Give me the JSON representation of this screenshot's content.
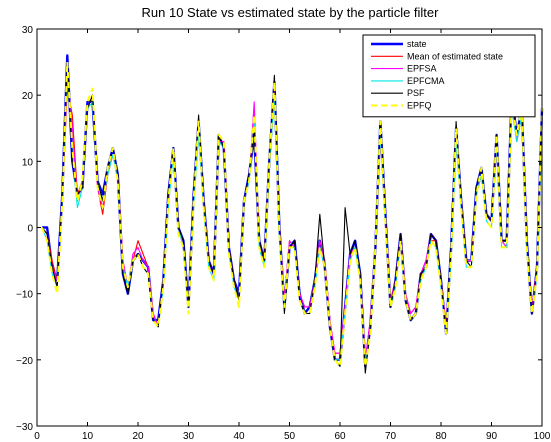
{
  "chart_data": {
    "type": "line",
    "title": "Run 10 State vs estimated state by the particle filter",
    "xlabel": "",
    "ylabel": "",
    "xlim": [
      0,
      100
    ],
    "ylim": [
      -30,
      30
    ],
    "grid": false,
    "legend_position": "top-right",
    "x_ticks": [
      0,
      10,
      20,
      30,
      40,
      50,
      60,
      70,
      80,
      90,
      100
    ],
    "y_ticks": [
      -30,
      -20,
      -10,
      0,
      10,
      20,
      30
    ],
    "x_tick_labels": [
      "0",
      "10",
      "20",
      "30",
      "40",
      "50",
      "60",
      "70",
      "80",
      "90",
      "100"
    ],
    "y_tick_labels": [
      "−30",
      "−20",
      "−10",
      "0",
      "10",
      "20",
      "30"
    ],
    "x": [
      1,
      2,
      3,
      4,
      5,
      6,
      7,
      8,
      9,
      10,
      11,
      12,
      13,
      14,
      15,
      16,
      17,
      18,
      19,
      20,
      21,
      22,
      23,
      24,
      25,
      26,
      27,
      28,
      29,
      30,
      31,
      32,
      33,
      34,
      35,
      36,
      37,
      38,
      39,
      40,
      41,
      42,
      43,
      44,
      45,
      46,
      47,
      48,
      49,
      50,
      51,
      52,
      53,
      54,
      55,
      56,
      57,
      58,
      59,
      60,
      61,
      62,
      63,
      64,
      65,
      66,
      67,
      68,
      69,
      70,
      71,
      72,
      73,
      74,
      75,
      76,
      77,
      78,
      79,
      80,
      81,
      82,
      83,
      84,
      85,
      86,
      87,
      88,
      89,
      90,
      91,
      92,
      93,
      94,
      95,
      96,
      97,
      98,
      99,
      100
    ],
    "series": [
      {
        "name": "state",
        "color": "#0000ff",
        "width": 2.4,
        "dash": "",
        "values": [
          0,
          0,
          -6,
          -8,
          5,
          26,
          10,
          5,
          6,
          19,
          19,
          7,
          5,
          9,
          12,
          8,
          -7,
          -10,
          -5,
          -4,
          -5,
          -6,
          -14,
          -14,
          -8,
          5,
          12,
          0,
          -2,
          -12,
          5,
          16,
          4,
          -5,
          -7,
          14,
          12,
          -3,
          -8,
          -10,
          4,
          8,
          14,
          -2,
          -5,
          10,
          22,
          0,
          -12,
          -3,
          -2,
          -10,
          -13,
          -12,
          -8,
          -2,
          -6,
          -15,
          -20,
          -20,
          -12,
          -4,
          -2,
          -7,
          -21,
          -15,
          -3,
          16,
          2,
          -12,
          -8,
          -1,
          -11,
          -14,
          -13,
          -7,
          -6,
          -1,
          -2,
          -8,
          -16,
          -3,
          15,
          4,
          -5,
          -5,
          6,
          9,
          2,
          1,
          14,
          -2,
          -2,
          20,
          14,
          18,
          -2,
          -13,
          -6,
          18
        ]
      },
      {
        "name": "Mean of estimated state",
        "color": "#ff0000",
        "width": 1.1,
        "dash": "",
        "values": [
          0,
          -1,
          -5,
          -8,
          4,
          21,
          17,
          5,
          7,
          18,
          20,
          6,
          2,
          8,
          11,
          8,
          -5,
          -9,
          -5,
          -2,
          -4,
          -6,
          -13,
          -15,
          -8,
          4,
          11,
          0,
          -3,
          -12,
          4,
          15,
          4,
          -5,
          -7,
          13,
          13,
          -3,
          -8,
          -11,
          4,
          7,
          18,
          -2,
          -5,
          9,
          21,
          0,
          -11,
          -2,
          -3,
          -10,
          -12,
          -12,
          -8,
          -2,
          -5,
          -14,
          -19,
          -19,
          -12,
          -4,
          -3,
          -7,
          -20,
          -14,
          -3,
          14,
          2,
          -11,
          -8,
          -1,
          -10,
          -13,
          -12,
          -7,
          -5,
          -2,
          -2,
          -8,
          -15,
          -4,
          14,
          4,
          -5,
          -5,
          5,
          8,
          2,
          1,
          13,
          -2,
          -3,
          19,
          13,
          17,
          -3,
          -12,
          -6,
          17
        ]
      },
      {
        "name": "EPFSA",
        "color": "#ff00ff",
        "width": 1.1,
        "dash": "",
        "values": [
          0,
          -1,
          -6,
          -8,
          4,
          23,
          15,
          4,
          7,
          18,
          20,
          6,
          3,
          8,
          11,
          8,
          -5,
          -9,
          -4,
          -3,
          -5,
          -6,
          -13,
          -15,
          -8,
          5,
          11,
          0,
          -3,
          -12,
          4,
          15,
          4,
          -5,
          -7,
          13,
          13,
          -3,
          -8,
          -11,
          4,
          7,
          19,
          -2,
          -5,
          9,
          21,
          0,
          -11,
          -2,
          -3,
          -10,
          -12,
          -12,
          -8,
          -2,
          -5,
          -14,
          -19,
          -19,
          -12,
          -4,
          -3,
          -7,
          -20,
          -14,
          -3,
          14,
          2,
          -11,
          -8,
          -1,
          -10,
          -13,
          -12,
          -7,
          -5,
          -1,
          -2,
          -8,
          -15,
          -4,
          14,
          4,
          -5,
          -5,
          5,
          8,
          2,
          1,
          14,
          -2,
          -3,
          19,
          13,
          17,
          -3,
          -12,
          -6,
          17
        ]
      },
      {
        "name": "EPFCMA",
        "color": "#00e5e5",
        "width": 1.1,
        "dash": "",
        "values": [
          0,
          -2,
          -7,
          -9,
          4,
          24,
          11,
          3,
          6,
          18,
          19,
          7,
          4,
          8,
          11,
          7,
          -6,
          -9,
          -5,
          -4,
          -6,
          -7,
          -14,
          -15,
          -9,
          3,
          11,
          0,
          -3,
          -12,
          3,
          14,
          3,
          -6,
          -8,
          13,
          12,
          -3,
          -9,
          -11,
          4,
          7,
          16,
          -3,
          -6,
          9,
          20,
          -1,
          -12,
          -3,
          -3,
          -11,
          -13,
          -13,
          -9,
          -3,
          -6,
          -15,
          -20,
          -20,
          -13,
          -5,
          -3,
          -8,
          -21,
          -15,
          -3,
          14,
          1,
          -12,
          -9,
          -2,
          -11,
          -14,
          -13,
          -8,
          -6,
          -2,
          -3,
          -9,
          -16,
          -5,
          13,
          3,
          -6,
          -6,
          5,
          8,
          1,
          0,
          13,
          -3,
          -3,
          18,
          13,
          17,
          -3,
          -13,
          -7,
          16
        ]
      },
      {
        "name": "PSF",
        "color": "#000000",
        "width": 1.1,
        "dash": "",
        "values": [
          0,
          -1,
          -6,
          -9,
          5,
          25,
          10,
          5,
          6,
          18,
          20,
          7,
          4,
          9,
          12,
          8,
          -7,
          -10,
          -5,
          -4,
          -6,
          -7,
          -14,
          -15,
          -8,
          5,
          12,
          0,
          -2,
          -12,
          5,
          17,
          4,
          -5,
          -7,
          14,
          12,
          -3,
          -8,
          -11,
          4,
          8,
          15,
          -2,
          -5,
          10,
          23,
          0,
          -13,
          -3,
          -2,
          -11,
          -13,
          -13,
          -8,
          2,
          -6,
          -15,
          -20,
          -21,
          3,
          -4,
          -2,
          -7,
          -22,
          -15,
          -3,
          16,
          2,
          -12,
          -8,
          -1,
          -11,
          -14,
          -13,
          -7,
          -6,
          -1,
          -2,
          -8,
          -16,
          -3,
          16,
          4,
          -5,
          -6,
          6,
          9,
          2,
          1,
          14,
          -2,
          -2,
          20,
          14,
          18,
          -2,
          -13,
          -6,
          18
        ]
      },
      {
        "name": "EPFQ",
        "color": "#ffff00",
        "width": 2.0,
        "dash": "6 4",
        "values": [
          0,
          -2,
          -7,
          -10,
          4,
          25,
          12,
          4,
          7,
          19,
          21,
          6,
          3,
          9,
          12,
          7,
          -6,
          -9,
          -5,
          -4,
          -6,
          -7,
          -14,
          -15,
          -9,
          4,
          12,
          -1,
          -3,
          -13,
          4,
          16,
          3,
          -6,
          -8,
          14,
          13,
          -4,
          -9,
          -12,
          4,
          7,
          17,
          -3,
          -6,
          10,
          22,
          -1,
          -12,
          -3,
          -3,
          -11,
          -13,
          -13,
          -9,
          -3,
          -6,
          -15,
          -20,
          -21,
          -13,
          -5,
          -3,
          -8,
          -21,
          -16,
          -3,
          16,
          1,
          -12,
          -9,
          -2,
          -11,
          -14,
          -13,
          -8,
          -6,
          -2,
          -3,
          -9,
          -16,
          -4,
          15,
          3,
          -6,
          -6,
          5,
          9,
          1,
          0,
          14,
          -3,
          -3,
          19,
          14,
          18,
          -3,
          -13,
          -7,
          18
        ]
      }
    ]
  }
}
